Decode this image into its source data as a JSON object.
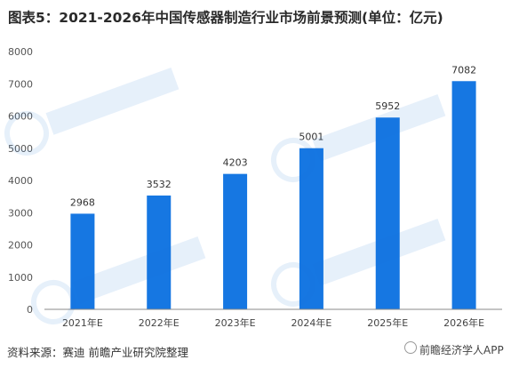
{
  "title": "图表5：2021-2026年中国传感器制造行业市场前景预测(单位：亿元)",
  "source": "资料来源：赛迪 前瞻产业研究院整理",
  "watermark": "前瞻经济学人APP",
  "colors": {
    "bar": "#1677e2",
    "axis": "#888888",
    "grid": "#e6e6e6"
  },
  "chart_data": {
    "type": "bar",
    "categories": [
      "2021年E",
      "2022年E",
      "2023年E",
      "2024年E",
      "2025年E",
      "2026年E"
    ],
    "values": [
      2968,
      3532,
      4203,
      5001,
      5952,
      7082
    ],
    "ylim": [
      0,
      8000
    ],
    "yticks": [
      0,
      1000,
      2000,
      3000,
      4000,
      5000,
      6000,
      7000,
      8000
    ],
    "grid": false,
    "data_labels": true
  }
}
